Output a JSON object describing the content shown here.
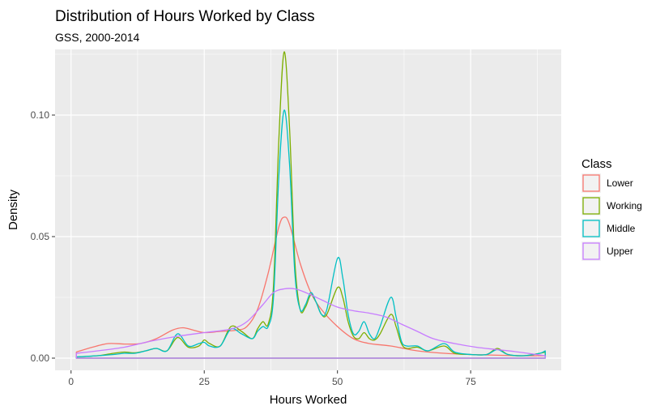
{
  "chart_data": {
    "type": "line",
    "title": "Distribution of Hours Worked by Class",
    "subtitle": "GSS, 2000-2014",
    "xlabel": "Hours Worked",
    "ylabel": "Density",
    "xlim": [
      -3,
      92
    ],
    "ylim": [
      -0.005,
      0.127
    ],
    "x_ticks": [
      0,
      25,
      50,
      75
    ],
    "x_tick_labels": [
      "0",
      "25",
      "50",
      "75"
    ],
    "y_ticks": [
      0.0,
      0.05,
      0.1
    ],
    "y_tick_labels": [
      "0.00",
      "0.05",
      "0.10"
    ],
    "grid": true,
    "legend": {
      "title": "Class",
      "placement": "right"
    },
    "series": [
      {
        "name": "Lower",
        "color": "#F8766D",
        "points": [
          [
            1,
            0.0025
          ],
          [
            4,
            0.0045
          ],
          [
            7,
            0.006
          ],
          [
            10,
            0.0058
          ],
          [
            13,
            0.006
          ],
          [
            16,
            0.008
          ],
          [
            19,
            0.0115
          ],
          [
            21,
            0.0125
          ],
          [
            23,
            0.0115
          ],
          [
            25,
            0.0105
          ],
          [
            28,
            0.011
          ],
          [
            31,
            0.0115
          ],
          [
            33,
            0.013
          ],
          [
            35,
            0.02
          ],
          [
            37,
            0.035
          ],
          [
            39,
            0.054
          ],
          [
            40,
            0.058
          ],
          [
            41,
            0.055
          ],
          [
            43,
            0.039
          ],
          [
            45,
            0.027
          ],
          [
            47,
            0.02
          ],
          [
            50,
            0.013
          ],
          [
            53,
            0.008
          ],
          [
            56,
            0.006
          ],
          [
            60,
            0.005
          ],
          [
            65,
            0.003
          ],
          [
            70,
            0.002
          ],
          [
            75,
            0.0015
          ],
          [
            80,
            0.0012
          ],
          [
            85,
            0.001
          ],
          [
            89,
            0.001
          ]
        ]
      },
      {
        "name": "Working",
        "color": "#7CAE00",
        "points": [
          [
            1,
            0.0005
          ],
          [
            5,
            0.001
          ],
          [
            8,
            0.002
          ],
          [
            10,
            0.0025
          ],
          [
            12,
            0.0022
          ],
          [
            14,
            0.003
          ],
          [
            16,
            0.004
          ],
          [
            18,
            0.003
          ],
          [
            20,
            0.0085
          ],
          [
            22,
            0.0045
          ],
          [
            24,
            0.005
          ],
          [
            25,
            0.0075
          ],
          [
            26,
            0.006
          ],
          [
            28,
            0.005
          ],
          [
            30,
            0.013
          ],
          [
            32,
            0.011
          ],
          [
            34,
            0.008
          ],
          [
            35,
            0.012
          ],
          [
            36,
            0.015
          ],
          [
            37,
            0.014
          ],
          [
            38,
            0.03
          ],
          [
            39,
            0.09
          ],
          [
            40,
            0.126
          ],
          [
            41,
            0.095
          ],
          [
            42,
            0.04
          ],
          [
            43,
            0.02
          ],
          [
            44,
            0.021
          ],
          [
            45,
            0.026
          ],
          [
            46,
            0.023
          ],
          [
            47,
            0.018
          ],
          [
            48,
            0.018
          ],
          [
            50,
            0.029
          ],
          [
            51,
            0.025
          ],
          [
            52,
            0.015
          ],
          [
            53,
            0.009
          ],
          [
            54,
            0.008
          ],
          [
            55,
            0.0105
          ],
          [
            56,
            0.008
          ],
          [
            57,
            0.0075
          ],
          [
            58,
            0.01
          ],
          [
            60,
            0.018
          ],
          [
            61,
            0.013
          ],
          [
            62,
            0.006
          ],
          [
            63,
            0.004
          ],
          [
            65,
            0.0045
          ],
          [
            67,
            0.003
          ],
          [
            70,
            0.005
          ],
          [
            72,
            0.002
          ],
          [
            75,
            0.0015
          ],
          [
            78,
            0.0015
          ],
          [
            80,
            0.004
          ],
          [
            82,
            0.0015
          ],
          [
            85,
            0.001
          ],
          [
            88,
            0.002
          ],
          [
            89,
            0.0025
          ]
        ]
      },
      {
        "name": "Middle",
        "color": "#00BFC4",
        "points": [
          [
            1,
            0.0005
          ],
          [
            5,
            0.001
          ],
          [
            8,
            0.0015
          ],
          [
            10,
            0.002
          ],
          [
            12,
            0.002
          ],
          [
            14,
            0.003
          ],
          [
            16,
            0.004
          ],
          [
            18,
            0.003
          ],
          [
            20,
            0.01
          ],
          [
            22,
            0.005
          ],
          [
            24,
            0.006
          ],
          [
            25,
            0.0065
          ],
          [
            26,
            0.005
          ],
          [
            28,
            0.005
          ],
          [
            30,
            0.012
          ],
          [
            32,
            0.01
          ],
          [
            34,
            0.008
          ],
          [
            35,
            0.011
          ],
          [
            36,
            0.013
          ],
          [
            37,
            0.013
          ],
          [
            38,
            0.025
          ],
          [
            39,
            0.075
          ],
          [
            40,
            0.102
          ],
          [
            41,
            0.08
          ],
          [
            42,
            0.035
          ],
          [
            43,
            0.02
          ],
          [
            44,
            0.022
          ],
          [
            45,
            0.027
          ],
          [
            46,
            0.023
          ],
          [
            47,
            0.018
          ],
          [
            48,
            0.02
          ],
          [
            50,
            0.041
          ],
          [
            51,
            0.033
          ],
          [
            52,
            0.018
          ],
          [
            53,
            0.01
          ],
          [
            54,
            0.011
          ],
          [
            55,
            0.015
          ],
          [
            56,
            0.01
          ],
          [
            57,
            0.008
          ],
          [
            58,
            0.013
          ],
          [
            60,
            0.025
          ],
          [
            61,
            0.017
          ],
          [
            62,
            0.007
          ],
          [
            63,
            0.005
          ],
          [
            65,
            0.005
          ],
          [
            67,
            0.003
          ],
          [
            70,
            0.006
          ],
          [
            72,
            0.0025
          ],
          [
            75,
            0.0015
          ],
          [
            78,
            0.0015
          ],
          [
            80,
            0.0035
          ],
          [
            82,
            0.0015
          ],
          [
            85,
            0.001
          ],
          [
            88,
            0.002
          ],
          [
            89,
            0.003
          ]
        ]
      },
      {
        "name": "Upper",
        "color": "#C77CFF",
        "points": [
          [
            1,
            0.002
          ],
          [
            5,
            0.003
          ],
          [
            10,
            0.0045
          ],
          [
            15,
            0.007
          ],
          [
            20,
            0.009
          ],
          [
            25,
            0.0105
          ],
          [
            30,
            0.012
          ],
          [
            33,
            0.015
          ],
          [
            36,
            0.022
          ],
          [
            38,
            0.027
          ],
          [
            40,
            0.0285
          ],
          [
            42,
            0.0285
          ],
          [
            44,
            0.027
          ],
          [
            47,
            0.024
          ],
          [
            50,
            0.021
          ],
          [
            53,
            0.0195
          ],
          [
            56,
            0.0185
          ],
          [
            59,
            0.017
          ],
          [
            62,
            0.014
          ],
          [
            65,
            0.011
          ],
          [
            68,
            0.008
          ],
          [
            72,
            0.006
          ],
          [
            76,
            0.0045
          ],
          [
            80,
            0.0035
          ],
          [
            84,
            0.0025
          ],
          [
            89,
            0.001
          ]
        ]
      }
    ]
  }
}
